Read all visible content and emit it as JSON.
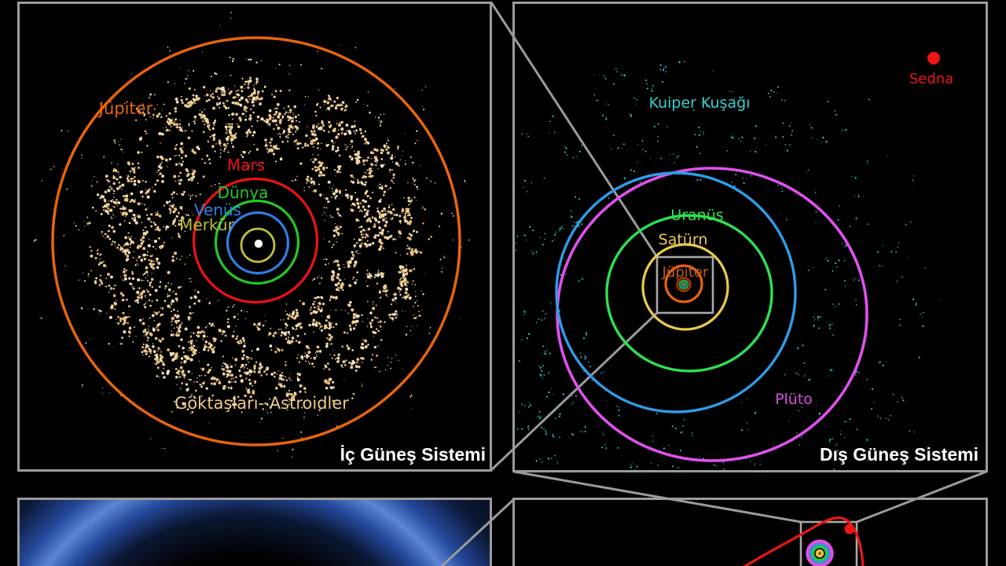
{
  "panels": {
    "inner": {
      "title": "İç Güneş Sistemi",
      "belt_label": "Göktaşları- Astroidler",
      "orbit_labels": {
        "jupiter": "Jüpiter",
        "mars": "Mars",
        "earth": "Dünya",
        "venus": "Venüs",
        "mercury": "Merkür"
      }
    },
    "outer": {
      "title": "Dış Güneş Sistemi",
      "orbit_labels": {
        "kuiper_belt": "Kuiper Kuşağı",
        "uranus": "Uranüs",
        "saturn": "Satürn",
        "jupiter": "Jüpiter",
        "pluto": "Plüto",
        "sedna": "Sedna"
      }
    }
  },
  "colors": {
    "background": "#000000",
    "panel_border": "#9b9b9b",
    "connector_line": "#9b9b9b",
    "zoom_box": "#a9a9a9",
    "panel_title": "#ffffff",
    "sun": "#ffffff",
    "mercury_orbit": "#bdbd3e",
    "venus_orbit": "#2f7fe6",
    "earth_orbit": "#25c825",
    "mars_orbit": "#ee1212",
    "jupiter_orbit": "#e8640e",
    "jupiter_label_outer": "#c05a14",
    "asteroid_belt_label": "#eecb8a",
    "asteroid_dots": [
      "#f0d7a4",
      "#eac584",
      "#f4e4c2",
      "#e8bd79"
    ],
    "saturn_orbit": "#eac94f",
    "uranus_orbit": "#2de050",
    "neptune_orbit": "#2f9ce8",
    "pluto_orbit": "#e051ee",
    "pluto_label": "#d44fe0",
    "kuiper_label": "#39cfcf",
    "kuiper_dots": "#3fd4d4",
    "sedna": "#ee1515",
    "center_rings": {
      "red": "#c22810",
      "green": "#2bb32b",
      "teal": "#27a8a8",
      "core": "#b8c238"
    },
    "mini_rings": {
      "magenta": "#e44fe4",
      "blue": "#2b9be0",
      "green": "#2ecc2e",
      "yellow": "#e8c04a",
      "core": "#8a4a10"
    },
    "oort_glow": {
      "dark": "#000000",
      "mid": "#0b1733",
      "ring": "#24489a",
      "bright": "#5c85d6"
    }
  }
}
